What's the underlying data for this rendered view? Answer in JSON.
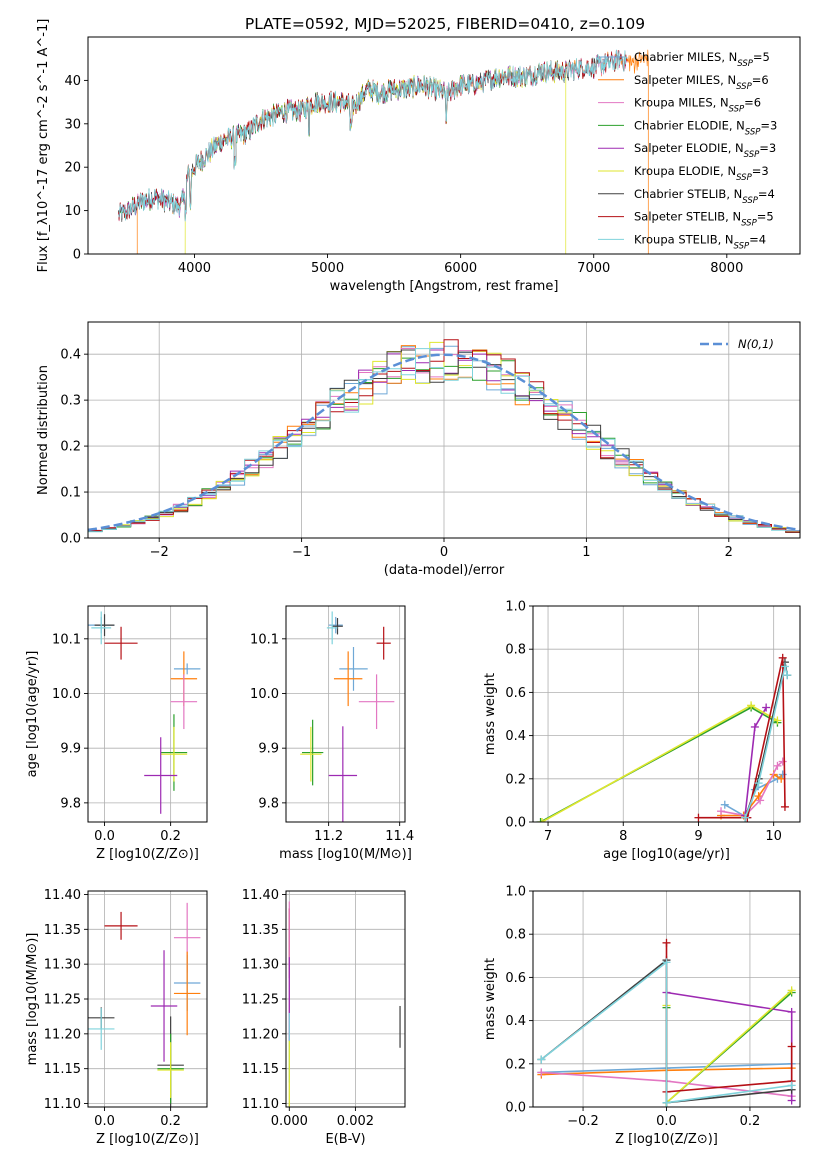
{
  "chart_data": [
    {
      "type": "line",
      "id": "spectrum",
      "title": "PLATE=0592, MJD=52025, FIBERID=0410, z=0.109",
      "xlabel": "wavelength [Angstrom, rest frame]",
      "ylabel": "Flux [f_λ10^-17 erg cm^-2 s^-1 A^-1]",
      "xlim": [
        3200,
        8550
      ],
      "ylim": [
        0,
        50
      ],
      "xticks": [
        4000,
        5000,
        6000,
        7000,
        8000
      ],
      "yticks": [
        0,
        10,
        20,
        30,
        40
      ],
      "legend": "upper-right",
      "series": [
        {
          "name": "Chabrier MILES, N_SSP=5",
          "color": "#6fa8d6"
        },
        {
          "name": "Salpeter MILES, N_SSP=6",
          "color": "#ff7f0e"
        },
        {
          "name": "Kroupa MILES, N_SSP=6",
          "color": "#e377c2"
        },
        {
          "name": "Chabrier ELODIE, N_SSP=3",
          "color": "#2ca02c"
        },
        {
          "name": "Salpeter ELODIE, N_SSP=3",
          "color": "#9d2ab2"
        },
        {
          "name": "Kroupa ELODIE, N_SSP=3",
          "color": "#dfe62e"
        },
        {
          "name": "Chabrier STELIB, N_SSP=4",
          "color": "#404040"
        },
        {
          "name": "Salpeter STELIB, N_SSP=5",
          "color": "#b51016"
        },
        {
          "name": "Kroupa STELIB, N_SSP=4",
          "color": "#7fd3dc"
        }
      ],
      "continuum_x": [
        3430,
        3500,
        3600,
        3700,
        3800,
        3900,
        3950,
        4000,
        4100,
        4200,
        4300,
        4400,
        4500,
        4600,
        4700,
        4800,
        4900,
        5000,
        5100,
        5200,
        5300,
        5400,
        5500,
        5600,
        5700,
        5800,
        5900,
        6000,
        6100,
        6200,
        6300,
        6400,
        6500,
        6600,
        6700,
        6800,
        6900,
        7000,
        7100,
        7200,
        7300,
        7400
      ],
      "continuum_y": [
        9,
        10,
        12,
        13,
        12,
        11,
        18,
        20,
        23,
        26,
        27,
        28,
        31,
        32,
        33,
        33,
        35,
        35,
        35,
        34,
        38,
        37,
        38,
        38,
        39,
        38,
        37,
        39,
        39,
        40,
        41,
        41,
        41,
        42,
        42,
        42,
        43,
        43,
        44,
        45,
        44,
        45
      ]
    },
    {
      "type": "line",
      "id": "residuals",
      "xlabel": "(data-model)/error",
      "ylabel": "Normed distribution",
      "xlim": [
        -2.5,
        2.5
      ],
      "ylim": [
        0,
        0.47
      ],
      "xticks": [
        -2,
        -1,
        0,
        1,
        2
      ],
      "yticks": [
        0.0,
        0.1,
        0.2,
        0.3,
        0.4
      ],
      "grid": true,
      "legend": "upper-right",
      "gaussian_label": "N(0,1)",
      "gaussian_color": "#5b8fd6"
    },
    {
      "type": "scatter",
      "id": "age_vs_Z",
      "xlabel": "Z [log10(Z/Z⊙)]",
      "ylabel": "age  [log10(age/yr)]",
      "xlim": [
        -0.05,
        0.31
      ],
      "ylim": [
        9.765,
        10.16
      ],
      "xticks": [
        0.0,
        0.2
      ],
      "yticks": [
        9.8,
        9.9,
        10.0,
        10.1
      ],
      "grid": true,
      "points": [
        {
          "x": -0.01,
          "y": 10.125,
          "xerr": 0.04,
          "yerr": 0.015,
          "color": "#6fa8d6"
        },
        {
          "x": 0.0,
          "y": 10.125,
          "xerr": 0.03,
          "yerr": 0.02,
          "color": "#404040"
        },
        {
          "x": -0.01,
          "y": 10.12,
          "xerr": 0.03,
          "yerr": 0.03,
          "color": "#7fd3dc"
        },
        {
          "x": 0.05,
          "y": 10.092,
          "xerr": 0.05,
          "yerr": 0.03,
          "color": "#b51016"
        },
        {
          "x": 0.25,
          "y": 10.045,
          "xerr": 0.04,
          "yerr": 0.01,
          "color": "#6fa8d6"
        },
        {
          "x": 0.24,
          "y": 10.027,
          "xerr": 0.04,
          "yerr": 0.05,
          "color": "#ff7f0e"
        },
        {
          "x": 0.24,
          "y": 9.985,
          "xerr": 0.04,
          "yerr": 0.05,
          "color": "#e377c2"
        },
        {
          "x": 0.21,
          "y": 9.892,
          "xerr": 0.04,
          "yerr": 0.07,
          "color": "#2ca02c"
        },
        {
          "x": 0.21,
          "y": 9.889,
          "xerr": 0.04,
          "yerr": 0.05,
          "color": "#dfe62e"
        },
        {
          "x": 0.17,
          "y": 9.85,
          "xerr": 0.05,
          "yerr": 0.07,
          "color": "#9d2ab2"
        }
      ]
    },
    {
      "type": "scatter",
      "id": "age_vs_mass",
      "xlabel": "mass [log10(M/M⊙)]",
      "ylabel": "",
      "xlim": [
        11.08,
        11.415
      ],
      "ylim": [
        9.765,
        10.16
      ],
      "xticks": [
        11.2,
        11.4
      ],
      "yticks": [
        9.8,
        9.9,
        10.0,
        10.1
      ],
      "grid": true,
      "points": [
        {
          "x": 11.22,
          "y": 10.125,
          "xerr": 0.02,
          "yerr": 0.015,
          "color": "#6fa8d6"
        },
        {
          "x": 11.225,
          "y": 10.123,
          "xerr": 0.015,
          "yerr": 0.015,
          "color": "#404040"
        },
        {
          "x": 11.21,
          "y": 10.12,
          "xerr": 0.015,
          "yerr": 0.03,
          "color": "#7fd3dc"
        },
        {
          "x": 11.355,
          "y": 10.092,
          "xerr": 0.02,
          "yerr": 0.03,
          "color": "#b51016"
        },
        {
          "x": 11.27,
          "y": 10.045,
          "xerr": 0.04,
          "yerr": 0.04,
          "color": "#6fa8d6"
        },
        {
          "x": 11.255,
          "y": 10.027,
          "xerr": 0.04,
          "yerr": 0.05,
          "color": "#ff7f0e"
        },
        {
          "x": 11.335,
          "y": 9.985,
          "xerr": 0.05,
          "yerr": 0.05,
          "color": "#e377c2"
        },
        {
          "x": 11.155,
          "y": 9.892,
          "xerr": 0.03,
          "yerr": 0.06,
          "color": "#2ca02c"
        },
        {
          "x": 11.15,
          "y": 9.889,
          "xerr": 0.03,
          "yerr": 0.05,
          "color": "#dfe62e"
        },
        {
          "x": 11.24,
          "y": 9.85,
          "xerr": 0.04,
          "yerr": 0.09,
          "color": "#9d2ab2"
        }
      ]
    },
    {
      "type": "line",
      "id": "massweight_vs_age",
      "xlabel": "age  [log10(age/yr)]",
      "ylabel": "mass weight",
      "xlim": [
        6.8,
        10.35
      ],
      "ylim": [
        0,
        1.0
      ],
      "xticks": [
        7,
        8,
        9,
        10
      ],
      "yticks": [
        0.0,
        0.2,
        0.4,
        0.6,
        0.8,
        1.0
      ],
      "grid": true,
      "series": [
        {
          "name": "Chabrier MILES",
          "color": "#6fa8d6",
          "x": [
            9.35,
            9.65,
            9.75,
            10.05,
            10.12
          ],
          "y": [
            0.08,
            0.02,
            0.15,
            0.2,
            0.22
          ]
        },
        {
          "name": "Salpeter MILES",
          "color": "#ff7f0e",
          "x": [
            9.3,
            9.6,
            9.8,
            10.0,
            10.1
          ],
          "y": [
            0.03,
            0.03,
            0.12,
            0.22,
            0.2
          ]
        },
        {
          "name": "Kroupa MILES",
          "color": "#e377c2",
          "x": [
            9.3,
            9.62,
            9.82,
            10.05,
            10.12
          ],
          "y": [
            0.05,
            0.03,
            0.1,
            0.26,
            0.28
          ]
        },
        {
          "name": "Chabrier ELODIE",
          "color": "#2ca02c",
          "x": [
            6.9,
            9.7,
            10.05
          ],
          "y": [
            0.0,
            0.53,
            0.46
          ]
        },
        {
          "name": "Salpeter ELODIE",
          "color": "#9d2ab2",
          "x": [
            9.62,
            9.75,
            9.9
          ],
          "y": [
            0.03,
            0.44,
            0.53
          ]
        },
        {
          "name": "Kroupa ELODIE",
          "color": "#dfe62e",
          "x": [
            6.92,
            9.7,
            10.05
          ],
          "y": [
            0.0,
            0.54,
            0.47
          ]
        },
        {
          "name": "Chabrier STELIB",
          "color": "#404040",
          "x": [
            9.62,
            9.8,
            10.15,
            10.18
          ],
          "y": [
            0.02,
            0.2,
            0.74,
            0.68
          ]
        },
        {
          "name": "Salpeter STELIB",
          "color": "#b51016",
          "x": [
            9.0,
            9.65,
            10.12,
            10.15
          ],
          "y": [
            0.02,
            0.02,
            0.76,
            0.07
          ]
        },
        {
          "name": "Kroupa STELIB",
          "color": "#7fd3dc",
          "x": [
            9.62,
            9.8,
            10.15,
            10.18
          ],
          "y": [
            0.02,
            0.18,
            0.72,
            0.68
          ]
        }
      ]
    },
    {
      "type": "scatter",
      "id": "mass_vs_Z",
      "xlabel": "Z [log10(Z/Z⊙)]",
      "ylabel": "mass [log10(M/M⊙)]",
      "xlim": [
        -0.05,
        0.31
      ],
      "ylim": [
        11.095,
        11.405
      ],
      "xticks": [
        0.0,
        0.2
      ],
      "yticks": [
        11.1,
        11.15,
        11.2,
        11.25,
        11.3,
        11.35,
        11.4
      ],
      "grid": true,
      "points": [
        {
          "x": 0.05,
          "y": 11.355,
          "xerr": 0.05,
          "yerr": 0.02,
          "color": "#b51016"
        },
        {
          "x": 0.25,
          "y": 11.338,
          "xerr": 0.04,
          "yerr": 0.05,
          "color": "#e377c2"
        },
        {
          "x": 0.25,
          "y": 11.273,
          "xerr": 0.04,
          "yerr": 0.04,
          "color": "#6fa8d6"
        },
        {
          "x": 0.25,
          "y": 11.258,
          "xerr": 0.04,
          "yerr": 0.06,
          "color": "#ff7f0e"
        },
        {
          "x": 0.18,
          "y": 11.24,
          "xerr": 0.04,
          "yerr": 0.08,
          "color": "#9d2ab2"
        },
        {
          "x": -0.01,
          "y": 11.223,
          "xerr": 0.04,
          "yerr": 0.015,
          "color": "#404040"
        },
        {
          "x": -0.01,
          "y": 11.207,
          "xerr": 0.04,
          "yerr": 0.03,
          "color": "#7fd3dc"
        },
        {
          "x": 0.2,
          "y": 11.155,
          "xerr": 0.04,
          "yerr": 0.07,
          "color": "#404040"
        },
        {
          "x": 0.2,
          "y": 11.15,
          "xerr": 0.04,
          "yerr": 0.05,
          "color": "#2ca02c"
        },
        {
          "x": 0.2,
          "y": 11.148,
          "xerr": 0.04,
          "yerr": 0.04,
          "color": "#dfe62e"
        }
      ]
    },
    {
      "type": "scatter",
      "id": "mass_vs_ebv",
      "xlabel": "E(B-V)",
      "ylabel": "",
      "xlim": [
        -0.0001,
        0.0035
      ],
      "ylim": [
        11.095,
        11.405
      ],
      "xticks": [
        0.0,
        0.002
      ],
      "xticklabels": [
        "0.000",
        "0.002"
      ],
      "yticks": [
        11.1,
        11.15,
        11.2,
        11.25,
        11.3,
        11.35,
        11.4
      ],
      "grid": true,
      "points": [
        {
          "x": 0.0,
          "y": 11.33,
          "xerr": 0,
          "yerr": 0.05,
          "color": "#b51016"
        },
        {
          "x": 0.0,
          "y": 11.29,
          "xerr": 0,
          "yerr": 0.1,
          "color": "#e377c2"
        },
        {
          "x": 0.0,
          "y": 11.25,
          "xerr": 0,
          "yerr": 0.06,
          "color": "#9d2ab2"
        },
        {
          "x": 0.0,
          "y": 11.18,
          "xerr": 0,
          "yerr": 0.05,
          "color": "#7fd3dc"
        },
        {
          "x": 0.0,
          "y": 11.14,
          "xerr": 0,
          "yerr": 0.05,
          "color": "#dfe62e"
        },
        {
          "x": 0.00335,
          "y": 11.21,
          "xerr": 0,
          "yerr": 0.03,
          "color": "#404040"
        }
      ]
    },
    {
      "type": "line",
      "id": "massweight_vs_Z",
      "xlabel": "Z [log10(Z/Z⊙)]",
      "ylabel": "mass weight",
      "xlim": [
        -0.32,
        0.32
      ],
      "ylim": [
        0,
        1.0
      ],
      "xticks": [
        -0.2,
        0.0,
        0.2
      ],
      "yticks": [
        0.0,
        0.2,
        0.4,
        0.6,
        0.8,
        1.0
      ],
      "grid": true,
      "series": [
        {
          "name": "Chabrier MILES",
          "color": "#6fa8d6",
          "x": [
            -0.3,
            0.0,
            0.3
          ],
          "y": [
            0.16,
            0.18,
            0.2
          ]
        },
        {
          "name": "Salpeter MILES",
          "color": "#ff7f0e",
          "x": [
            -0.3,
            0.0,
            0.3
          ],
          "y": [
            0.15,
            0.17,
            0.18
          ]
        },
        {
          "name": "Kroupa MILES",
          "color": "#e377c2",
          "x": [
            -0.3,
            0.0,
            0.3
          ],
          "y": [
            0.16,
            0.12,
            0.05
          ]
        },
        {
          "name": "Chabrier ELODIE",
          "color": "#2ca02c",
          "x": [
            0.0,
            0.0,
            0.3
          ],
          "y": [
            0.46,
            0.02,
            0.53
          ]
        },
        {
          "name": "Salpeter ELODIE",
          "color": "#9d2ab2",
          "x": [
            0.0,
            0.3,
            0.3
          ],
          "y": [
            0.53,
            0.44,
            0.03
          ]
        },
        {
          "name": "Kroupa ELODIE",
          "color": "#dfe62e",
          "x": [
            0.0,
            0.0,
            0.3
          ],
          "y": [
            0.47,
            0.02,
            0.54
          ]
        },
        {
          "name": "Chabrier STELIB",
          "color": "#404040",
          "x": [
            -0.3,
            0.0,
            0.0,
            0.3
          ],
          "y": [
            0.22,
            0.68,
            0.02,
            0.08
          ]
        },
        {
          "name": "Salpeter STELIB",
          "color": "#b51016",
          "x": [
            0.0,
            0.0,
            0.3,
            0.3
          ],
          "y": [
            0.76,
            0.07,
            0.12,
            0.28
          ]
        },
        {
          "name": "Kroupa STELIB",
          "color": "#7fd3dc",
          "x": [
            -0.3,
            0.0,
            0.0,
            0.3
          ],
          "y": [
            0.22,
            0.67,
            0.02,
            0.1
          ]
        }
      ]
    }
  ]
}
